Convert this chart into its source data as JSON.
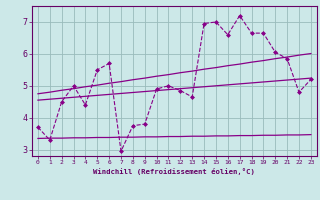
{
  "x": [
    0,
    1,
    2,
    3,
    4,
    5,
    6,
    7,
    8,
    9,
    10,
    11,
    12,
    13,
    14,
    15,
    16,
    17,
    18,
    19,
    20,
    21,
    22,
    23
  ],
  "y_data": [
    3.7,
    3.3,
    4.5,
    5.0,
    4.4,
    5.5,
    5.7,
    2.95,
    3.75,
    3.8,
    4.9,
    5.0,
    4.85,
    4.65,
    6.95,
    7.0,
    6.6,
    7.2,
    6.65,
    6.65,
    6.05,
    5.85,
    4.8,
    5.2
  ],
  "y_mean": [
    4.55,
    4.58,
    4.61,
    4.64,
    4.67,
    4.7,
    4.73,
    4.76,
    4.79,
    4.82,
    4.85,
    4.88,
    4.91,
    4.94,
    4.97,
    5.0,
    5.03,
    5.06,
    5.09,
    5.12,
    5.15,
    5.18,
    5.21,
    5.24
  ],
  "y_upper": [
    4.75,
    4.8,
    4.86,
    4.91,
    4.97,
    5.02,
    5.08,
    5.13,
    5.19,
    5.24,
    5.3,
    5.35,
    5.41,
    5.46,
    5.52,
    5.57,
    5.63,
    5.68,
    5.74,
    5.79,
    5.85,
    5.9,
    5.96,
    6.01
  ],
  "y_lower": [
    3.35,
    3.36,
    3.36,
    3.37,
    3.37,
    3.38,
    3.38,
    3.39,
    3.39,
    3.4,
    3.4,
    3.41,
    3.41,
    3.42,
    3.42,
    3.43,
    3.43,
    3.44,
    3.44,
    3.45,
    3.45,
    3.46,
    3.46,
    3.47
  ],
  "color": "#880088",
  "bg_color": "#cce8e8",
  "grid_color": "#99bbbb",
  "xlabel": "Windchill (Refroidissement éolien,°C)",
  "ylim": [
    2.8,
    7.5
  ],
  "xlim": [
    -0.5,
    23.5
  ],
  "yticks": [
    3,
    4,
    5,
    6,
    7
  ],
  "xticks": [
    0,
    1,
    2,
    3,
    4,
    5,
    6,
    7,
    8,
    9,
    10,
    11,
    12,
    13,
    14,
    15,
    16,
    17,
    18,
    19,
    20,
    21,
    22,
    23
  ]
}
